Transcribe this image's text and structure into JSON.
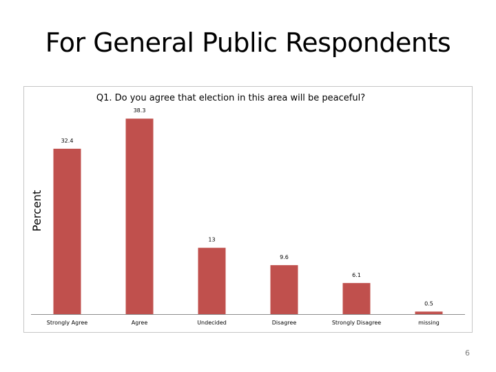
{
  "slide": {
    "title": "For General Public Respondents",
    "page_number": "6"
  },
  "chart_data": {
    "type": "bar",
    "title": "Q1. Do you agree that election in this area will be peaceful?",
    "xlabel": "",
    "ylabel": "Percent",
    "categories": [
      "Strongly Agree",
      "Agree",
      "Undecided",
      "Disagree",
      "Strongly Disagree",
      "missing"
    ],
    "values": [
      32.4,
      38.3,
      13,
      9.6,
      6.1,
      0.5
    ],
    "data_labels": [
      "32.4",
      "38.3",
      "13",
      "9.6",
      "6.1",
      "0.5"
    ],
    "ylim": [
      0,
      40
    ],
    "grid": false,
    "legend": "none",
    "bar_color": "#c0504d"
  }
}
